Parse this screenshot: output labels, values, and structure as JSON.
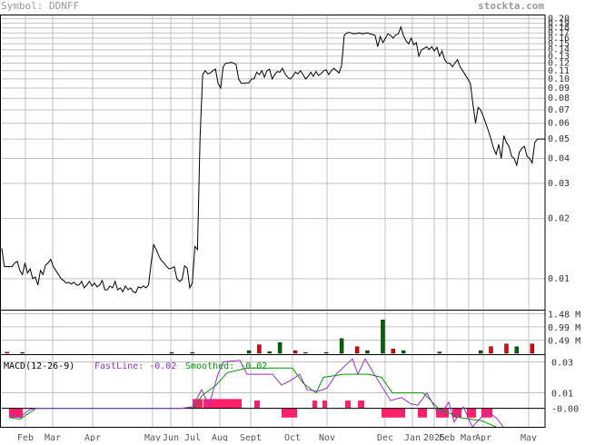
{
  "header": {
    "symbol_label": "Symbol: DDNFF",
    "site": "stockta.com"
  },
  "chart_data": [
    {
      "type": "line",
      "name": "price",
      "scale": "log",
      "ylim": [
        0.007,
        0.21
      ],
      "y_ticks": [
        0.2,
        0.19,
        0.18,
        0.17,
        0.16,
        0.15,
        0.14,
        0.13,
        0.12,
        0.11,
        0.1,
        0.09,
        0.08,
        0.07,
        0.06,
        0.05,
        0.04,
        0.03,
        0.02,
        0.01
      ],
      "y_tick_labels": [
        "0.20",
        "0.19",
        "0.18",
        "0.17",
        "0.16",
        "0.15",
        "0.14",
        "0.13",
        "0.12",
        "0.11",
        "0.10",
        "0.09",
        "0.08",
        "0.07",
        "0.06",
        "0.05",
        "0.04",
        "0.03",
        "0.02",
        "0.01"
      ],
      "grid": true,
      "values": [
        0.0142,
        0.0115,
        0.0115,
        0.0115,
        0.0115,
        0.012,
        0.0122,
        0.011,
        0.0105,
        0.012,
        0.0107,
        0.0112,
        0.01,
        0.0102,
        0.0093,
        0.011,
        0.0105,
        0.0117,
        0.012,
        0.0125,
        0.0115,
        0.011,
        0.0105,
        0.01,
        0.0098,
        0.0095,
        0.0096,
        0.0094,
        0.0096,
        0.0093,
        0.0093,
        0.0097,
        0.009,
        0.0093,
        0.0097,
        0.0092,
        0.0095,
        0.0091,
        0.0093,
        0.0098,
        0.0088,
        0.0088,
        0.0092,
        0.009,
        0.0097,
        0.0088,
        0.009,
        0.0086,
        0.0092,
        0.0088,
        0.009,
        0.0086,
        0.0085,
        0.0091,
        0.009,
        0.0092,
        0.009,
        0.0093,
        0.012,
        0.0148,
        0.014,
        0.013,
        0.0123,
        0.012,
        0.0115,
        0.0112,
        0.0113,
        0.0115,
        0.01,
        0.0097,
        0.0099,
        0.0116,
        0.0113,
        0.009,
        0.0095,
        0.0145,
        0.014,
        0.05,
        0.105,
        0.11,
        0.106,
        0.107,
        0.11,
        0.112,
        0.095,
        0.09,
        0.115,
        0.12,
        0.12,
        0.121,
        0.12,
        0.118,
        0.1,
        0.095,
        0.095,
        0.0955,
        0.0955,
        0.1,
        0.1,
        0.108,
        0.105,
        0.11,
        0.102,
        0.11,
        0.112,
        0.1,
        0.105,
        0.109,
        0.108,
        0.113,
        0.106,
        0.102,
        0.1,
        0.103,
        0.108,
        0.106,
        0.11,
        0.105,
        0.1,
        0.103,
        0.108,
        0.103,
        0.109,
        0.104,
        0.106,
        0.11,
        0.111,
        0.105,
        0.11,
        0.113,
        0.11,
        0.107,
        0.117,
        0.165,
        0.17,
        0.171,
        0.169,
        0.168,
        0.169,
        0.17,
        0.168,
        0.169,
        0.17,
        0.168,
        0.167,
        0.165,
        0.145,
        0.163,
        0.152,
        0.16,
        0.168,
        0.165,
        0.16,
        0.166,
        0.168,
        0.182,
        0.165,
        0.155,
        0.15,
        0.16,
        0.148,
        0.152,
        0.13,
        0.14,
        0.142,
        0.145,
        0.14,
        0.145,
        0.138,
        0.144,
        0.13,
        0.138,
        0.125,
        0.12,
        0.12,
        0.115,
        0.12,
        0.125,
        0.115,
        0.11,
        0.105,
        0.1,
        0.095,
        0.075,
        0.06,
        0.072,
        0.07,
        0.065,
        0.06,
        0.055,
        0.05,
        0.045,
        0.042,
        0.047,
        0.04,
        0.052,
        0.048,
        0.046,
        0.041,
        0.04,
        0.037,
        0.043,
        0.045,
        0.046,
        0.041,
        0.04,
        0.038,
        0.048,
        0.05,
        0.05,
        0.05,
        0.05
      ]
    },
    {
      "type": "bar",
      "name": "volume",
      "unit": "M",
      "ylim": [
        0,
        1.6
      ],
      "y_ticks": [
        1.48,
        0.99,
        0.49
      ],
      "y_tick_labels": [
        "1.48 M",
        "0.99 M",
        "0.49 M"
      ],
      "bars": [
        {
          "d": 2,
          "v": 0.04,
          "c": "red"
        },
        {
          "d": 8,
          "v": 0.03,
          "c": "red"
        },
        {
          "d": 66,
          "v": 0.03,
          "c": "red"
        },
        {
          "d": 74,
          "v": 0.03,
          "c": "red"
        },
        {
          "d": 96,
          "v": 0.1,
          "c": "green"
        },
        {
          "d": 100,
          "v": 0.32,
          "c": "red"
        },
        {
          "d": 104,
          "v": 0.06,
          "c": "green"
        },
        {
          "d": 108,
          "v": 0.4,
          "c": "green"
        },
        {
          "d": 114,
          "v": 0.1,
          "c": "red"
        },
        {
          "d": 118,
          "v": 0.03,
          "c": "red"
        },
        {
          "d": 126,
          "v": 0.03,
          "c": "green"
        },
        {
          "d": 132,
          "v": 0.55,
          "c": "green"
        },
        {
          "d": 138,
          "v": 0.25,
          "c": "red"
        },
        {
          "d": 142,
          "v": 0.1,
          "c": "green"
        },
        {
          "d": 148,
          "v": 1.25,
          "c": "green"
        },
        {
          "d": 152,
          "v": 0.16,
          "c": "red"
        },
        {
          "d": 156,
          "v": 0.1,
          "c": "green"
        },
        {
          "d": 170,
          "v": 0.05,
          "c": "green"
        },
        {
          "d": 186,
          "v": 0.1,
          "c": "green"
        },
        {
          "d": 190,
          "v": 0.25,
          "c": "red"
        },
        {
          "d": 196,
          "v": 0.35,
          "c": "red"
        },
        {
          "d": 200,
          "v": 0.25,
          "c": "green"
        },
        {
          "d": 206,
          "v": 0.35,
          "c": "red"
        },
        {
          "d": 234,
          "v": 0.03,
          "c": "green"
        },
        {
          "d": 286,
          "v": 0.08,
          "c": "green"
        },
        {
          "d": 290,
          "v": 0.05,
          "c": "green"
        },
        {
          "d": 296,
          "v": 0.04,
          "c": "green"
        },
        {
          "d": 314,
          "v": 0.04,
          "c": "green"
        },
        {
          "d": 342,
          "v": 0.05,
          "c": "green"
        },
        {
          "d": 348,
          "v": 0.03,
          "c": "green"
        },
        {
          "d": 356,
          "v": 0.06,
          "c": "green"
        },
        {
          "d": 408,
          "v": 0.12,
          "c": "green"
        },
        {
          "d": 520,
          "v": 0.05,
          "c": "green"
        },
        {
          "d": 526,
          "v": 0.05,
          "c": "green"
        },
        {
          "d": 532,
          "v": 0.18,
          "c": "red"
        },
        {
          "d": 542,
          "v": 0.05,
          "c": "green"
        },
        {
          "d": 586,
          "v": 0.05,
          "c": "green"
        }
      ]
    },
    {
      "type": "line",
      "name": "macd",
      "title": "MACD(12-26-9)",
      "legend": [
        {
          "label": "FastLine: -0.02",
          "color": "#9933cc"
        },
        {
          "label": "Smoothed: -0.02",
          "color": "#009900"
        }
      ],
      "ylim": [
        -0.012,
        0.035
      ],
      "y_ticks": [
        0.03,
        0.01,
        -0.0
      ],
      "y_tick_labels": [
        "0.03",
        "0.01",
        "-0.00"
      ],
      "zero_line": true,
      "fast": [
        [
          10,
          -0.004
        ],
        [
          22,
          -0.006
        ],
        [
          32,
          -0.001
        ],
        [
          40,
          0
        ],
        [
          200,
          0
        ],
        [
          212,
          0.001
        ],
        [
          222,
          0.012
        ],
        [
          230,
          0.002
        ],
        [
          240,
          0.022
        ],
        [
          246,
          0.03
        ],
        [
          264,
          0.031
        ],
        [
          272,
          0.022
        ],
        [
          300,
          0.022
        ],
        [
          310,
          0.015
        ],
        [
          320,
          0.018
        ],
        [
          330,
          0.022
        ],
        [
          338,
          0.012
        ],
        [
          350,
          0.011
        ],
        [
          360,
          0.013
        ],
        [
          370,
          0.022
        ],
        [
          388,
          0.032
        ],
        [
          394,
          0.022
        ],
        [
          402,
          0.032
        ],
        [
          410,
          0.024
        ],
        [
          430,
          0.005
        ],
        [
          442,
          0.007
        ],
        [
          452,
          0.003
        ],
        [
          460,
          0.002
        ],
        [
          470,
          0.01
        ],
        [
          480,
          -0.001
        ],
        [
          486,
          -0.003
        ],
        [
          494,
          0.004
        ],
        [
          500,
          -0.009
        ],
        [
          510,
          0.001
        ],
        [
          520,
          -0.012
        ],
        [
          528,
          -0.007
        ],
        [
          536,
          -0.002
        ],
        [
          546,
          -0.006
        ],
        [
          554,
          -0.012
        ]
      ],
      "smoothed": [
        [
          10,
          -0.006
        ],
        [
          22,
          -0.007
        ],
        [
          40,
          0
        ],
        [
          200,
          0
        ],
        [
          214,
          0.001
        ],
        [
          222,
          0.008
        ],
        [
          238,
          0.015
        ],
        [
          250,
          0.023
        ],
        [
          272,
          0.026
        ],
        [
          302,
          0.026
        ],
        [
          322,
          0.026
        ],
        [
          334,
          0.016
        ],
        [
          348,
          0.01
        ],
        [
          356,
          0.02
        ],
        [
          378,
          0.022
        ],
        [
          406,
          0.022
        ],
        [
          420,
          0.02
        ],
        [
          432,
          0.01
        ],
        [
          466,
          0.01
        ],
        [
          476,
          0.004
        ],
        [
          484,
          -0.001
        ],
        [
          494,
          -0.003
        ],
        [
          506,
          -0.006
        ],
        [
          530,
          -0.008
        ],
        [
          546,
          -0.012
        ]
      ],
      "histogram": [
        {
          "x0": 10,
          "x1": 25,
          "v": -0.006
        },
        {
          "x0": 212,
          "x1": 223,
          "v": 0.006
        },
        {
          "x0": 224,
          "x1": 266,
          "v": 0.006
        },
        {
          "x0": 280,
          "x1": 286,
          "v": 0.005
        },
        {
          "x0": 310,
          "x1": 327,
          "v": -0.006
        },
        {
          "x0": 344,
          "x1": 349,
          "v": 0.005
        },
        {
          "x0": 355,
          "x1": 360,
          "v": 0.005
        },
        {
          "x0": 380,
          "x1": 386,
          "v": 0.005
        },
        {
          "x0": 394,
          "x1": 401,
          "v": 0.005
        },
        {
          "x0": 420,
          "x1": 446,
          "v": -0.006
        },
        {
          "x0": 460,
          "x1": 470,
          "v": -0.006
        },
        {
          "x0": 480,
          "x1": 494,
          "v": -0.006
        },
        {
          "x0": 498,
          "x1": 508,
          "v": -0.006
        },
        {
          "x0": 514,
          "x1": 524,
          "v": -0.006
        },
        {
          "x0": 530,
          "x1": 542,
          "v": -0.006
        }
      ]
    }
  ],
  "x_axis": {
    "labels": [
      "Feb",
      "Mar",
      "Apr",
      "May",
      "Jun",
      "Jul",
      "Aug",
      "Sept",
      "Oct",
      "Nov",
      "Dec",
      "Jan",
      "2025",
      "Feb",
      "Mar",
      "Apr",
      "May"
    ],
    "positions": [
      28,
      58,
      102,
      168,
      188,
      212,
      242,
      276,
      322,
      360,
      424,
      454,
      478,
      492,
      516,
      532,
      582
    ]
  }
}
